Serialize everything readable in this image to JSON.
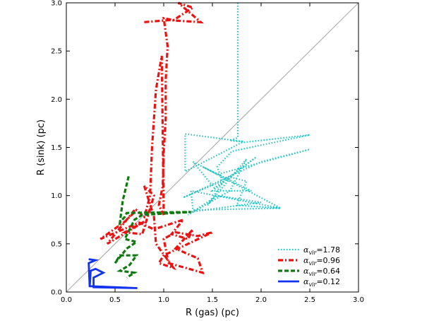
{
  "chart_data": {
    "type": "line",
    "title": "",
    "xlabel": "R (gas) (pc)",
    "ylabel": "R (sink) (pc)",
    "xlim": [
      0,
      3.0
    ],
    "ylim": [
      0,
      3.0
    ],
    "xticks": [
      "0.0",
      "0.5",
      "1.0",
      "1.5",
      "2.0",
      "2.5",
      "3.0"
    ],
    "yticks": [
      "0.0",
      "0.5",
      "1.0",
      "1.5",
      "2.0",
      "2.5",
      "3.0"
    ],
    "grid": false,
    "legend_position": "lower-right",
    "reference_line": {
      "from": [
        0,
        0
      ],
      "to": [
        3.0,
        3.0
      ],
      "color": "#b0b0b0"
    },
    "series": [
      {
        "name": "1.78",
        "legend_symbol": "α",
        "legend_subscript": "vir",
        "legend_suffix": "=1.78",
        "color": "#22c3c3",
        "style": "dotted",
        "points": [
          [
            1.76,
            3.0
          ],
          [
            1.76,
            2.6
          ],
          [
            1.76,
            2.2
          ],
          [
            1.76,
            1.8
          ],
          [
            1.76,
            1.6
          ],
          [
            1.68,
            1.57
          ],
          [
            1.82,
            1.56
          ],
          [
            1.22,
            1.64
          ],
          [
            1.22,
            1.25
          ],
          [
            1.8,
            1.55
          ],
          [
            2.5,
            1.63
          ],
          [
            1.7,
            1.46
          ],
          [
            1.55,
            1.3
          ],
          [
            1.6,
            1.15
          ],
          [
            1.2,
            0.98
          ],
          [
            2.0,
            1.35
          ],
          [
            2.5,
            1.48
          ],
          [
            1.55,
            1.22
          ],
          [
            1.3,
            1.35
          ],
          [
            1.52,
            1.08
          ],
          [
            1.95,
            1.4
          ],
          [
            1.5,
            1.05
          ],
          [
            1.9,
            1.05
          ],
          [
            1.4,
            1.3
          ],
          [
            2.2,
            0.87
          ],
          [
            1.28,
            1.05
          ],
          [
            1.3,
            0.85
          ],
          [
            2.2,
            0.87
          ],
          [
            1.75,
            0.9
          ],
          [
            1.85,
            1.15
          ],
          [
            1.65,
            1.2
          ],
          [
            1.45,
            0.9
          ],
          [
            1.85,
            1.38
          ],
          [
            1.68,
            1.05
          ],
          [
            1.25,
            0.8
          ],
          [
            1.55,
            1.0
          ],
          [
            2.0,
            0.93
          ],
          [
            1.2,
            0.82
          ]
        ]
      },
      {
        "name": "0.96",
        "legend_symbol": "α",
        "legend_subscript": "vir",
        "legend_suffix": "=0.96",
        "color": "#ee1111",
        "style": "dashdot",
        "points": [
          [
            0.8,
            2.8
          ],
          [
            1.05,
            2.82
          ],
          [
            1.38,
            2.8
          ],
          [
            1.15,
            3.0
          ],
          [
            1.3,
            2.95
          ],
          [
            1.1,
            2.82
          ],
          [
            1.0,
            2.84
          ],
          [
            1.04,
            2.55
          ],
          [
            1.02,
            2.2
          ],
          [
            1.02,
            1.8
          ],
          [
            1.0,
            1.45
          ],
          [
            0.99,
            1.1
          ],
          [
            0.95,
            0.9
          ],
          [
            1.0,
            0.8
          ],
          [
            0.98,
            2.45
          ],
          [
            0.92,
            2.1
          ],
          [
            0.88,
            1.5
          ],
          [
            0.86,
            1.0
          ],
          [
            0.82,
            0.85
          ],
          [
            0.8,
            0.78
          ],
          [
            0.72,
            0.85
          ],
          [
            0.6,
            0.73
          ],
          [
            0.35,
            0.55
          ],
          [
            0.75,
            0.72
          ],
          [
            0.9,
            0.65
          ],
          [
            1.2,
            0.75
          ],
          [
            1.08,
            0.6
          ],
          [
            1.25,
            0.55
          ],
          [
            1.3,
            0.65
          ],
          [
            1.12,
            0.45
          ],
          [
            1.35,
            0.35
          ],
          [
            1.4,
            0.2
          ],
          [
            1.05,
            0.3
          ],
          [
            1.0,
            0.55
          ],
          [
            1.12,
            0.62
          ],
          [
            1.35,
            0.58
          ],
          [
            1.5,
            0.62
          ],
          [
            1.0,
            0.38
          ],
          [
            0.95,
            0.3
          ],
          [
            1.1,
            0.25
          ],
          [
            0.92,
            0.5
          ],
          [
            0.9,
            0.78
          ],
          [
            0.8,
            1.1
          ],
          [
            0.9,
            1.0
          ],
          [
            0.78,
            0.6
          ],
          [
            0.6,
            0.62
          ],
          [
            0.8,
            0.73
          ],
          [
            0.42,
            0.5
          ],
          [
            0.7,
            0.85
          ]
        ]
      },
      {
        "name": "0.64",
        "legend_symbol": "α",
        "legend_subscript": "vir",
        "legend_suffix": "=0.64",
        "color": "#0f7a0f",
        "style": "dashed",
        "points": [
          [
            0.64,
            1.2
          ],
          [
            0.58,
            0.95
          ],
          [
            0.55,
            0.72
          ],
          [
            0.6,
            0.78
          ],
          [
            0.62,
            0.82
          ],
          [
            1.28,
            0.83
          ],
          [
            0.78,
            0.8
          ],
          [
            0.7,
            0.75
          ],
          [
            0.6,
            0.55
          ],
          [
            0.72,
            0.52
          ],
          [
            0.62,
            0.45
          ],
          [
            0.5,
            0.3
          ],
          [
            0.55,
            0.38
          ],
          [
            0.72,
            0.38
          ],
          [
            0.65,
            0.28
          ],
          [
            0.55,
            0.22
          ],
          [
            0.7,
            0.2
          ],
          [
            0.62,
            0.15
          ]
        ]
      },
      {
        "name": "0.12",
        "legend_symbol": "α",
        "legend_subscript": "vir",
        "legend_suffix": "=0.12",
        "color": "#1133ee",
        "style": "solid",
        "points": [
          [
            0.23,
            0.34
          ],
          [
            0.3,
            0.33
          ],
          [
            0.23,
            0.3
          ],
          [
            0.24,
            0.05
          ],
          [
            0.25,
            0.22
          ],
          [
            0.3,
            0.24
          ],
          [
            0.38,
            0.2
          ],
          [
            0.28,
            0.15
          ],
          [
            0.28,
            0.05
          ],
          [
            0.73,
            0.04
          ],
          [
            0.25,
            0.06
          ]
        ]
      }
    ]
  }
}
